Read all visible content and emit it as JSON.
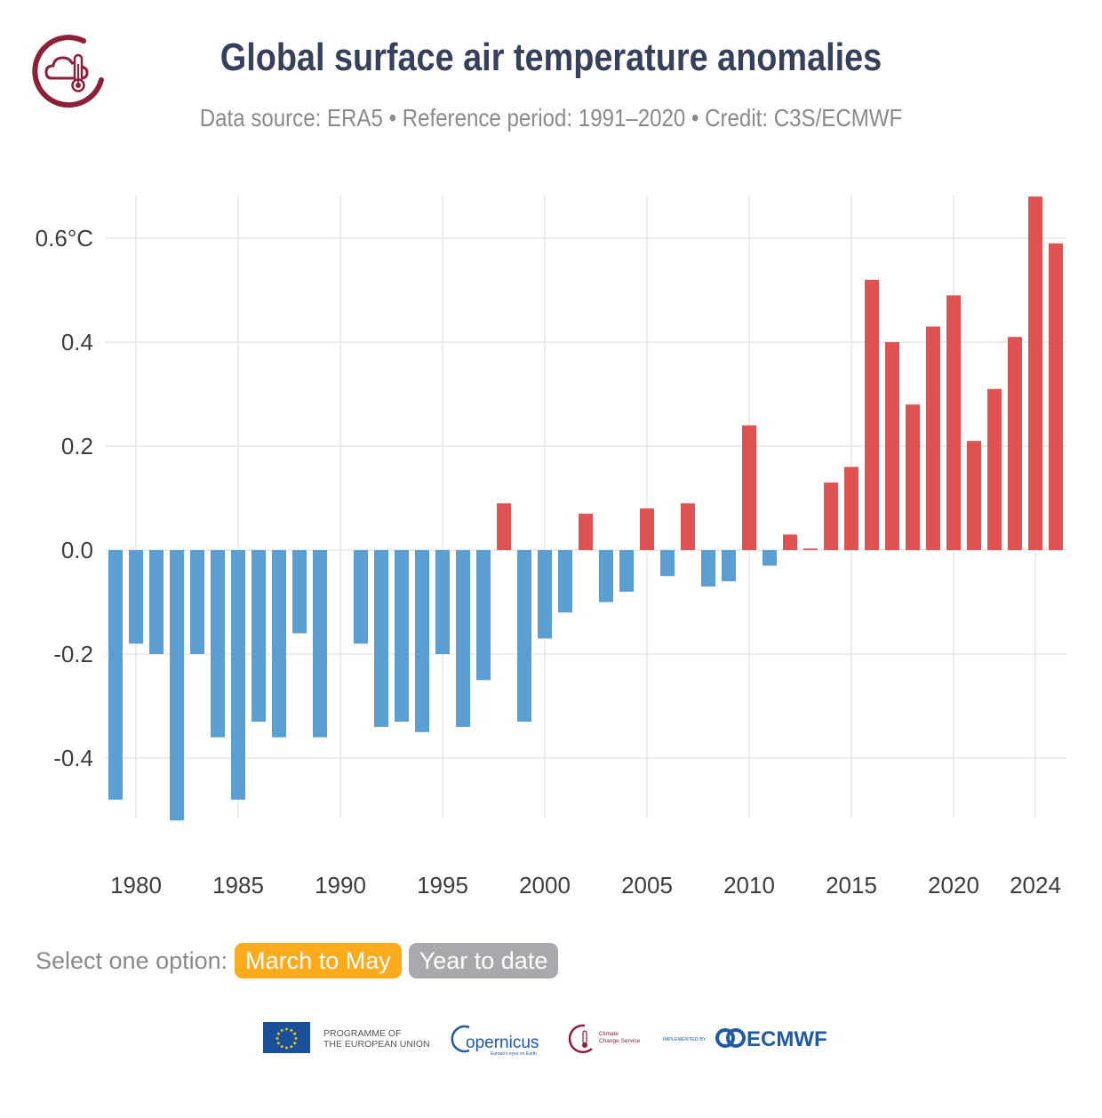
{
  "header": {
    "title": "Global surface air temperature anomalies",
    "subtitle": "Data source: ERA5 • Reference period: 1991–2020 • Credit: C3S/ECMWF"
  },
  "selector": {
    "label": "Select one option:",
    "options": [
      {
        "label": "March to May",
        "active": true
      },
      {
        "label": "Year to date",
        "active": false
      }
    ]
  },
  "footer": {
    "eu_text_line1": "PROGRAMME OF",
    "eu_text_line2": "THE EUROPEAN UNION",
    "copernicus_text": "opernicus",
    "copernicus_tagline": "Europe's eyes on Earth",
    "c3s_line1": "Climate",
    "c3s_line2": "Change Service",
    "implemented_by": "IMPLEMENTED BY",
    "ecmwf_text": "ECMWF"
  },
  "colors": {
    "positive": "#e05252",
    "negative": "#5b9fd2",
    "title": "#36405a",
    "accent_active": "#fbab1c",
    "inactive": "#a9a9ad"
  },
  "chart_data": {
    "type": "bar",
    "x": [
      1979,
      1980,
      1981,
      1982,
      1983,
      1984,
      1985,
      1986,
      1987,
      1988,
      1989,
      1990,
      1991,
      1992,
      1993,
      1994,
      1995,
      1996,
      1997,
      1998,
      1999,
      2000,
      2001,
      2002,
      2003,
      2004,
      2005,
      2006,
      2007,
      2008,
      2009,
      2010,
      2011,
      2012,
      2013,
      2014,
      2015,
      2016,
      2017,
      2018,
      2019,
      2020,
      2021,
      2022,
      2023,
      2024,
      2025
    ],
    "values": [
      -0.48,
      -0.18,
      -0.2,
      -0.52,
      -0.2,
      -0.36,
      -0.48,
      -0.33,
      -0.36,
      -0.16,
      -0.36,
      0.0,
      -0.18,
      -0.34,
      -0.33,
      -0.35,
      -0.2,
      -0.34,
      -0.25,
      0.09,
      -0.33,
      -0.17,
      -0.12,
      0.07,
      -0.1,
      -0.08,
      0.08,
      -0.05,
      0.09,
      -0.07,
      -0.06,
      0.24,
      -0.03,
      0.03,
      0.003,
      0.13,
      0.16,
      0.52,
      0.4,
      0.28,
      0.43,
      0.49,
      0.21,
      0.31,
      0.41,
      0.68,
      0.59
    ],
    "y_ticks": [
      {
        "value": 0.6,
        "label": "0.6°C"
      },
      {
        "value": 0.4,
        "label": "0.4"
      },
      {
        "value": 0.2,
        "label": "0.2"
      },
      {
        "value": 0.0,
        "label": "0.0"
      },
      {
        "value": -0.2,
        "label": "-0.2"
      },
      {
        "value": -0.4,
        "label": "-0.4"
      }
    ],
    "x_ticks": [
      1980,
      1985,
      1990,
      1995,
      2000,
      2005,
      2010,
      2015,
      2020,
      2024
    ],
    "ylim": [
      -0.52,
      0.68
    ],
    "xlim": [
      1978.5,
      2025.5
    ],
    "grid": true,
    "title": "Global surface air temperature anomalies",
    "xlabel": "",
    "ylabel": ""
  }
}
